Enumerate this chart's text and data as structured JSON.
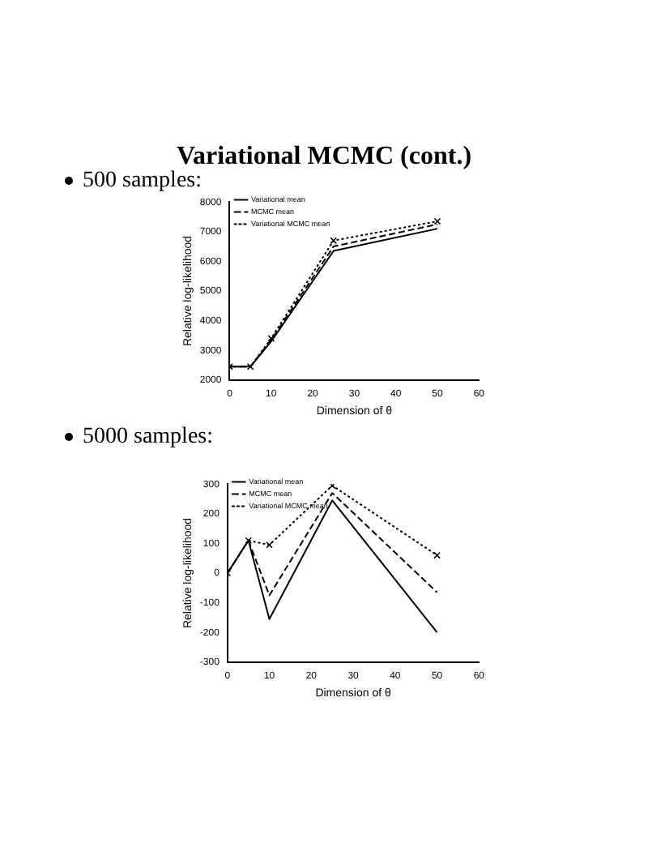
{
  "chart_data": [
    {
      "type": "line",
      "title": "Variational MCMC (cont.)",
      "subtitle": "500 samples:",
      "xlabel": "Dimension of θ",
      "ylabel": "Relative log-likelihood",
      "x": [
        0,
        5,
        10,
        25,
        50
      ],
      "series": [
        {
          "name": "Variational mean",
          "color": "#000000",
          "values": [
            2450,
            2450,
            3300,
            6350,
            7100
          ],
          "line_style": "solid",
          "marker": "none"
        },
        {
          "name": "MCMC mean",
          "color": "#000000",
          "values": [
            2450,
            2450,
            3350,
            6500,
            7250
          ],
          "line_style": "dashed",
          "marker": "none"
        },
        {
          "name": "Variational MCMC mean",
          "color": "#000000",
          "values": [
            2450,
            2450,
            3400,
            6700,
            7350
          ],
          "line_style": "dotted",
          "marker": "cross"
        }
      ],
      "xlim": [
        0,
        60
      ],
      "xticks": [
        0,
        10,
        20,
        30,
        40,
        50,
        60
      ],
      "ylim": [
        2000,
        8000
      ],
      "yticks": [
        2000,
        3000,
        4000,
        5000,
        6000,
        7000,
        8000
      ],
      "legend": "top left"
    },
    {
      "type": "line",
      "subtitle": "5000 samples:",
      "xlabel": "Dimension of θ",
      "ylabel": "Relative log-likelihood",
      "x": [
        0,
        5,
        10,
        25,
        50
      ],
      "series": [
        {
          "name": "Variational mean",
          "color": "#000000",
          "values": [
            0,
            110,
            -155,
            245,
            -200
          ],
          "line_style": "solid",
          "marker": "none"
        },
        {
          "name": "MCMC mean",
          "color": "#000000",
          "values": [
            0,
            110,
            -75,
            270,
            -65
          ],
          "line_style": "dashed",
          "marker": "none"
        },
        {
          "name": "Variational MCMC mean",
          "color": "#000000",
          "values": [
            0,
            110,
            95,
            295,
            60
          ],
          "line_style": "dotted",
          "marker": "cross"
        }
      ],
      "xlim": [
        0,
        60
      ],
      "xticks": [
        0,
        10,
        20,
        30,
        40,
        50,
        60
      ],
      "ylim": [
        -300,
        300
      ],
      "yticks": [
        -300,
        -200,
        -100,
        0,
        100,
        200,
        300
      ],
      "legend": "top left"
    }
  ]
}
